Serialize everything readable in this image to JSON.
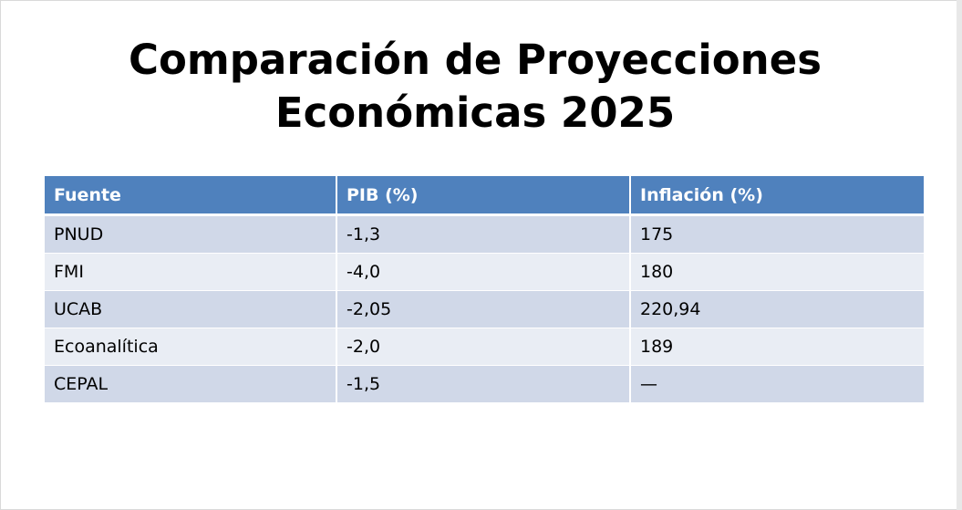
{
  "title": {
    "line1": "Comparación de Proyecciones",
    "line2": "Económicas 2025"
  },
  "table": {
    "headers": [
      "Fuente",
      "PIB (%)",
      "Inflación (%)"
    ],
    "rows": [
      [
        "PNUD",
        "-1,3",
        "175"
      ],
      [
        "FMI",
        "-4,0",
        "180"
      ],
      [
        "UCAB",
        "-2,05",
        "220,94"
      ],
      [
        "Ecoanalítica",
        "-2,0",
        "189"
      ],
      [
        "CEPAL",
        "-1,5",
        "—"
      ]
    ]
  },
  "colors": {
    "header_bg": "#4f81bd",
    "row_odd_bg": "#d0d8e8",
    "row_even_bg": "#e9edf4"
  }
}
